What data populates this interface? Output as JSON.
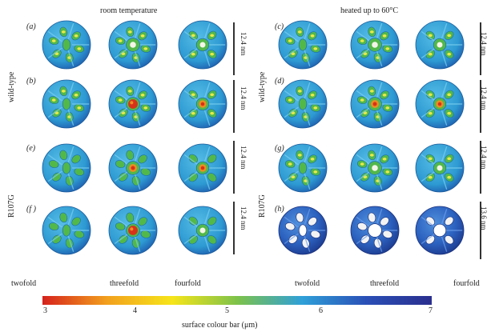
{
  "headers": {
    "left": "room temperature",
    "right": "heated up to 60°C"
  },
  "row_labels": {
    "wild_left": "wild-type",
    "wild_right": "wild-type",
    "mut_left": "R107G",
    "mut_right": "R107G"
  },
  "panel_labels": {
    "a": "(a)",
    "b": "(b)",
    "c": "(c)",
    "d": "(d)",
    "e": "(e)",
    "f": "(f )",
    "g": "(g)",
    "h": "(h)"
  },
  "scale_labels": {
    "a": "12.4 nm",
    "b": "12.4 nm",
    "c": "12.4 nm",
    "d": "12.4 nm",
    "e": "12.4 nm",
    "f": "12.4 nm",
    "g": "12.4 nm",
    "h": "13.6 nm"
  },
  "view_labels": {
    "twofold_left": "twofold",
    "threefold_left": "threefold",
    "fourfold_left": "fourfold",
    "twofold_right": "twofold",
    "threefold_right": "threefold",
    "fourfold_right": "fourfold"
  },
  "colorbar": {
    "title": "surface colour bar (μm)",
    "ticks": [
      "3",
      "4",
      "5",
      "6",
      "7"
    ],
    "colors": [
      "#d6221c",
      "#f2a11d",
      "#f6e51a",
      "#7dc24a",
      "#2fa0d8",
      "#2a4fb6",
      "#2a2f8e"
    ]
  },
  "surface_colors": {
    "shell": "#2d9ad2",
    "shell_light": "#56bce6",
    "shell_dark": "#1f5fb0",
    "inner_green": "#52b84a",
    "inner_yellow": "#e8e84a",
    "core_red": "#d6321a",
    "core_orange": "#ec8c22"
  }
}
